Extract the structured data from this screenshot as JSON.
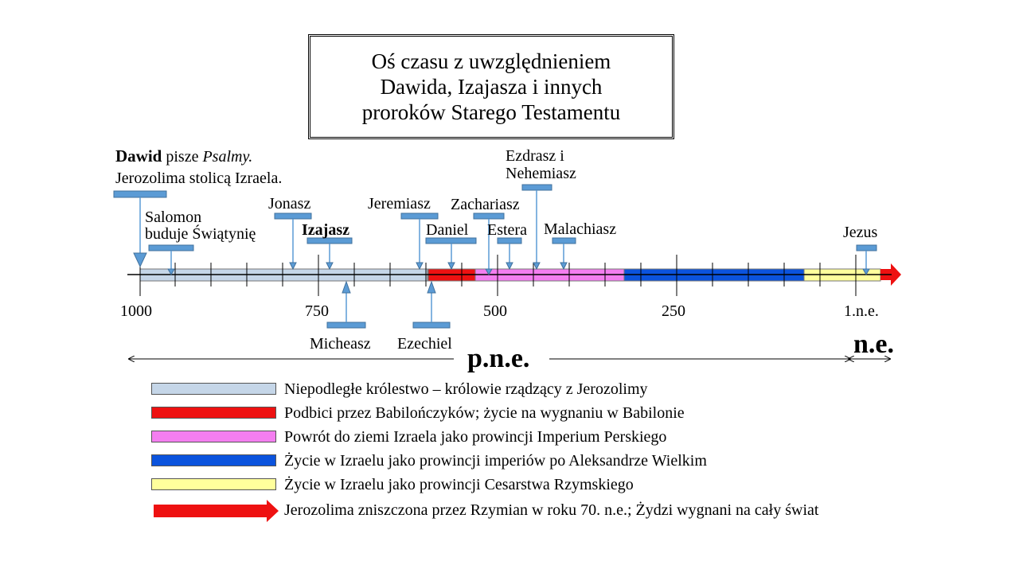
{
  "title": [
    "Oś czasu z uwzględnieniem",
    "Dawida, Izajasza i innych",
    "proroków Starego Testamentu"
  ],
  "david": {
    "name": "Dawid",
    "mid": " pisze ",
    "italic": "Psalmy.",
    "line2": "Jerozolima stolicą Izraela."
  },
  "labels": {
    "salomon_1": "Salomon",
    "salomon_2": "buduje Świątynię",
    "jonasz": "Jonasz",
    "izajasz": "Izajasz",
    "micheasz": "Micheasz",
    "jeremiasz": "Jeremiasz",
    "ezechiel": "Ezechiel",
    "daniel": "Daniel",
    "zachariasz": "Zachariasz",
    "estera": "Estera",
    "ezdrasz_1": "Ezdrasz i",
    "ezdrasz_2": "Nehemiasz",
    "malachiasz": "Malachiasz",
    "jezus": "Jezus"
  },
  "axis": {
    "ticks": [
      "1000",
      "750",
      "500",
      "250",
      "1.n.e."
    ],
    "bce": "p.n.e.",
    "ce": "n.e."
  },
  "periods": [
    {
      "label": "Niepodległe królestwo – królowie rządzący z Jerozolimy",
      "color": "#c5d6e8"
    },
    {
      "label": "Podbici przez Babilończyków; życie na wygnaniu w Babilonie",
      "color": "#ee1111"
    },
    {
      "label": "Powrót do ziemi Izraela jako prowincji Imperium Perskiego",
      "color": "#f47ef0"
    },
    {
      "label": "Życie w Izraelu jako prowincji imperiów po Aleksandrze Wielkim",
      "color": "#0b53dd"
    },
    {
      "label": "Życie w Izraelu jako prowincji Cesarstwa Rzymskiego",
      "color": "#ffff9c"
    },
    {
      "label": "Jerozolima zniszczona przez Rzymian w roku 70. n.e.; Żydzi wygnani na cały świat",
      "color": "#ee1111"
    }
  ],
  "colors": {
    "marker": "#5b9bd5",
    "marker_border": "#41719c"
  }
}
